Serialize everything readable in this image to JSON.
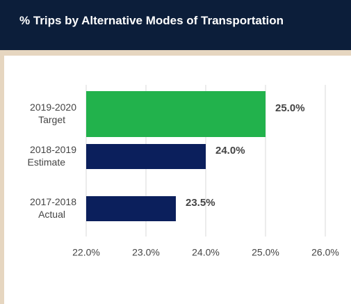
{
  "chart_data": {
    "type": "barh",
    "title": "% Trips by Alternative Modes of Transportation",
    "categories": [
      "2019-2020\nTarget",
      "2018-2019\nEstimate",
      "2017-2018\nActual"
    ],
    "values": [
      25.0,
      24.0,
      23.5
    ],
    "value_labels": [
      "25.0%",
      "24.0%",
      "23.5%"
    ],
    "colors": [
      "#22b24c",
      "#0b1f5c",
      "#0b1f5c"
    ],
    "xlim": [
      22,
      26
    ],
    "xticks": [
      {
        "value": 22,
        "label": "22.0%"
      },
      {
        "value": 23,
        "label": "23.0%"
      },
      {
        "value": 24,
        "label": "24.0%"
      },
      {
        "value": 25,
        "label": "25.0%"
      },
      {
        "value": 26,
        "label": "26.0%"
      }
    ],
    "grid": true
  }
}
